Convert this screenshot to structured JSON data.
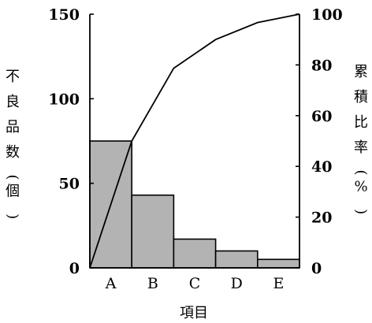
{
  "chart_data": {
    "type": "bar",
    "subtype": "pareto",
    "title": "",
    "categories": [
      "A",
      "B",
      "C",
      "D",
      "E"
    ],
    "values": [
      75,
      43,
      17,
      10,
      5
    ],
    "cumulative_percent": [
      0,
      50,
      78.7,
      90,
      96.7,
      100
    ],
    "xlabel": "項目",
    "ylabel_left": "不良品数(個)",
    "ylabel_right": "累積比率(%)",
    "ylim_left": [
      0,
      150
    ],
    "ylim_right": [
      0,
      100
    ],
    "yticks_left": [
      "0",
      "50",
      "100",
      "150"
    ],
    "yticks_right": [
      "0",
      "20",
      "40",
      "60",
      "80",
      "100"
    ],
    "grid": false,
    "legend": "none",
    "colors": {
      "bar_fill": "#b3b3b3",
      "bar_stroke": "#000000",
      "line": "#000000",
      "axis": "#000000"
    }
  }
}
